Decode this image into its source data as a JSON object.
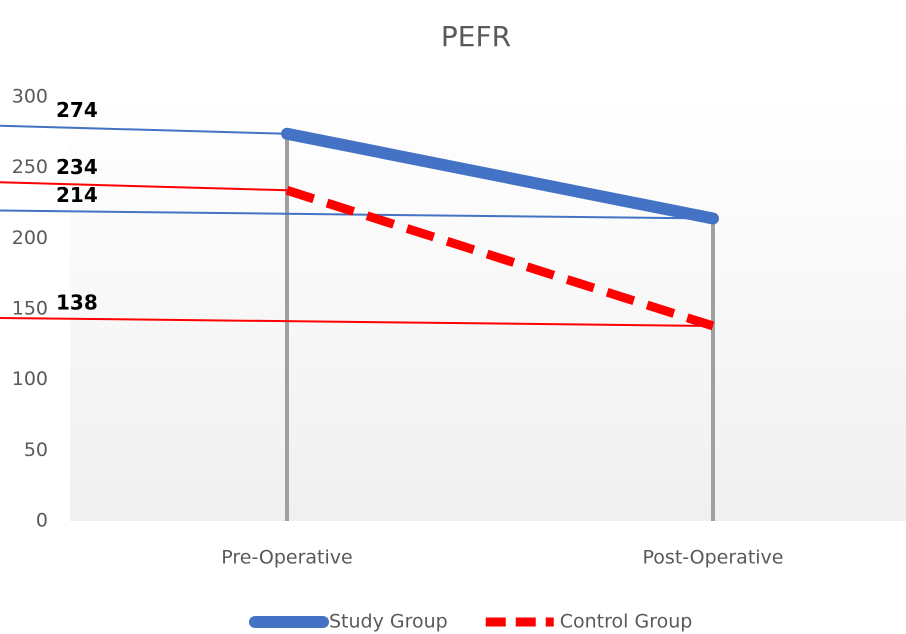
{
  "chart_data": {
    "type": "line",
    "title": "PEFR",
    "categories": [
      "Pre-Operative",
      "Post-Operative"
    ],
    "series": [
      {
        "name": "Study Group",
        "color": "#4472c4",
        "values": [
          274,
          214
        ]
      },
      {
        "name": "Control Group",
        "color": "#ff0000",
        "values": [
          234,
          138
        ]
      }
    ],
    "ylim": [
      0,
      300
    ],
    "yticks": [
      0,
      50,
      100,
      150,
      200,
      250,
      300
    ],
    "legend": "bottom"
  }
}
